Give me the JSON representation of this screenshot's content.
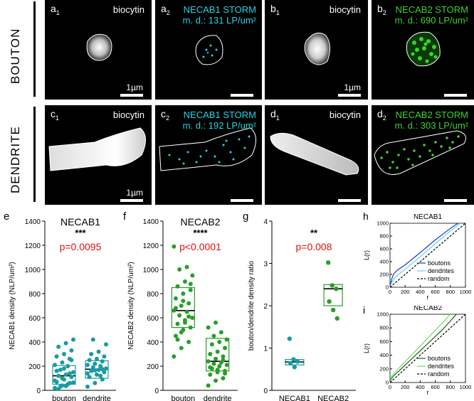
{
  "rows": {
    "bouton": "BOUTON",
    "dendrite": "DENDRITE"
  },
  "panels": {
    "a1": {
      "letter": "a",
      "sub": "1",
      "label": "biocytin",
      "scale": "1µm"
    },
    "a2": {
      "letter": "a",
      "sub": "2",
      "label": "NECAB1 STORM",
      "density": "m. d.: 131 LP/um²",
      "color": "#22d3e6"
    },
    "b1": {
      "letter": "b",
      "sub": "1",
      "label": "biocytin",
      "scale": "1µm"
    },
    "b2": {
      "letter": "b",
      "sub": "2",
      "label": "NECAB2 STORM",
      "density": "m. d.: 690 LP/um²",
      "color": "#3bd32a"
    },
    "c1": {
      "letter": "c",
      "sub": "1",
      "label": "biocytin",
      "scale": "1µm"
    },
    "c2": {
      "letter": "c",
      "sub": "2",
      "label": "NECAB1 STORM",
      "density": "m. d.: 192 LP/um²",
      "color": "#22d3e6"
    },
    "d1": {
      "letter": "d",
      "sub": "1",
      "label": "biocytin"
    },
    "d2": {
      "letter": "d",
      "sub": "2",
      "label": "NECAB2 STORM",
      "density": "m. d.: 303 LP/um²",
      "color": "#3bd32a"
    }
  },
  "chart_data": [
    {
      "panel": "e",
      "type": "scatter",
      "title": "NECAB1",
      "stars": "***",
      "pvalue": "p=0.0095",
      "ylabel": "NECAB1 density (NLP/um²)",
      "ylim": [
        0,
        1400
      ],
      "yticks": [
        "0",
        "200",
        "400",
        "600",
        "800",
        "1000",
        "1200",
        "1400"
      ],
      "categories": [
        "bouton",
        "dendrite"
      ],
      "color": "#1a9ba1",
      "box": [
        {
          "q1": 50,
          "median": 120,
          "q3": 205
        },
        {
          "q1": 100,
          "median": 175,
          "q3": 245
        }
      ],
      "points": [
        [
          20,
          40,
          60,
          70,
          90,
          110,
          120,
          130,
          150,
          170,
          200,
          210,
          230,
          260,
          280,
          300,
          330,
          360,
          390,
          420,
          30,
          50,
          80,
          100,
          140,
          160,
          180,
          250,
          10,
          35,
          65
        ],
        [
          30,
          60,
          90,
          110,
          130,
          150,
          160,
          170,
          180,
          190,
          200,
          210,
          220,
          240,
          250,
          260,
          280,
          300,
          320,
          380,
          420,
          120,
          140,
          165,
          175
        ]
      ]
    },
    {
      "panel": "f",
      "type": "scatter",
      "title": "NECAB2",
      "stars": "****",
      "pvalue": "p<0.0001",
      "ylabel": "NECAB2 density (NLP/um²)",
      "ylim": [
        0,
        1400
      ],
      "yticks": [
        "0",
        "200",
        "400",
        "600",
        "800",
        "1000",
        "1200",
        "1400"
      ],
      "categories": [
        "bouton",
        "dendrite"
      ],
      "color": "#2a9d2a",
      "box": [
        {
          "q1": 520,
          "median": 660,
          "q3": 850
        },
        {
          "q1": 160,
          "median": 240,
          "q3": 430
        }
      ],
      "points": [
        [
          280,
          350,
          400,
          450,
          500,
          520,
          550,
          580,
          600,
          620,
          650,
          660,
          700,
          720,
          760,
          800,
          830,
          860,
          900,
          950,
          1000,
          1020,
          1190,
          480,
          610,
          680,
          740,
          880,
          420,
          560
        ],
        [
          40,
          80,
          100,
          130,
          150,
          160,
          180,
          200,
          210,
          220,
          230,
          240,
          260,
          280,
          300,
          320,
          350,
          380,
          400,
          420,
          450,
          480,
          520,
          560,
          250,
          190,
          170,
          140
        ]
      ]
    },
    {
      "panel": "g",
      "type": "scatter",
      "stars": "**",
      "pvalue": "p=0.008",
      "ylabel": "bouton/dendrite density ratio",
      "ylim": [
        0,
        4
      ],
      "yticks": [
        "0",
        "1",
        "2",
        "3",
        "4"
      ],
      "categories": [
        "NECAB1",
        "NECAB2"
      ],
      "colors": [
        "#1a9ba1",
        "#2a9d2a"
      ],
      "box": [
        {
          "q1": 0.6,
          "median": 0.67,
          "q3": 0.73
        },
        {
          "q1": 2.0,
          "median": 2.4,
          "q3": 2.5
        }
      ],
      "points": [
        [
          1.22,
          0.73,
          0.68,
          0.64,
          0.55
        ],
        [
          3.02,
          2.48,
          2.4,
          2.1,
          1.9,
          1.7
        ]
      ]
    },
    {
      "panel": "h",
      "type": "line",
      "title": "NECAB1",
      "xlabel": "r",
      "ylabel": "L(r)",
      "xlim": [
        0,
        1000
      ],
      "ylim": [
        0,
        1000
      ],
      "xticks": [
        "0",
        "200",
        "400",
        "600",
        "800",
        "1000"
      ],
      "yticks": [
        "0",
        "200",
        "400",
        "600",
        "800",
        "1000"
      ],
      "series": [
        {
          "name": "boutons",
          "color": "#2233cc",
          "x": [
            0,
            20,
            50,
            100,
            200,
            400,
            600,
            800,
            900
          ],
          "y": [
            0,
            120,
            210,
            270,
            350,
            540,
            740,
            920,
            1000
          ]
        },
        {
          "name": "dendrites",
          "color": "#55d6ec",
          "x": [
            0,
            20,
            50,
            100,
            200,
            400,
            600,
            800,
            930
          ],
          "y": [
            0,
            70,
            130,
            190,
            280,
            480,
            680,
            880,
            1000
          ]
        },
        {
          "name": "random",
          "color": "#000",
          "dashed": true,
          "x": [
            0,
            1000
          ],
          "y": [
            0,
            1000
          ]
        }
      ]
    },
    {
      "panel": "i",
      "type": "line",
      "title": "NECAB2",
      "xlabel": "r",
      "ylabel": "L(r)",
      "xlim": [
        0,
        1000
      ],
      "ylim": [
        0,
        1000
      ],
      "xticks": [
        "0",
        "200",
        "400",
        "600",
        "800",
        "1000"
      ],
      "yticks": [
        "0",
        "200",
        "400",
        "600",
        "800",
        "1000"
      ],
      "series": [
        {
          "name": "boutons",
          "color": "#1b5e20",
          "x": [
            0,
            20,
            50,
            100,
            300,
            500,
            700,
            880
          ],
          "y": [
            0,
            60,
            100,
            150,
            360,
            570,
            780,
            1000
          ]
        },
        {
          "name": "dendrites",
          "color": "#6be05a",
          "x": [
            0,
            20,
            50,
            100,
            300,
            500,
            700,
            800
          ],
          "y": [
            0,
            90,
            130,
            190,
            420,
            650,
            880,
            1000
          ]
        },
        {
          "name": "random",
          "color": "#000",
          "dashed": true,
          "x": [
            0,
            1000
          ],
          "y": [
            0,
            1000
          ]
        }
      ]
    }
  ]
}
